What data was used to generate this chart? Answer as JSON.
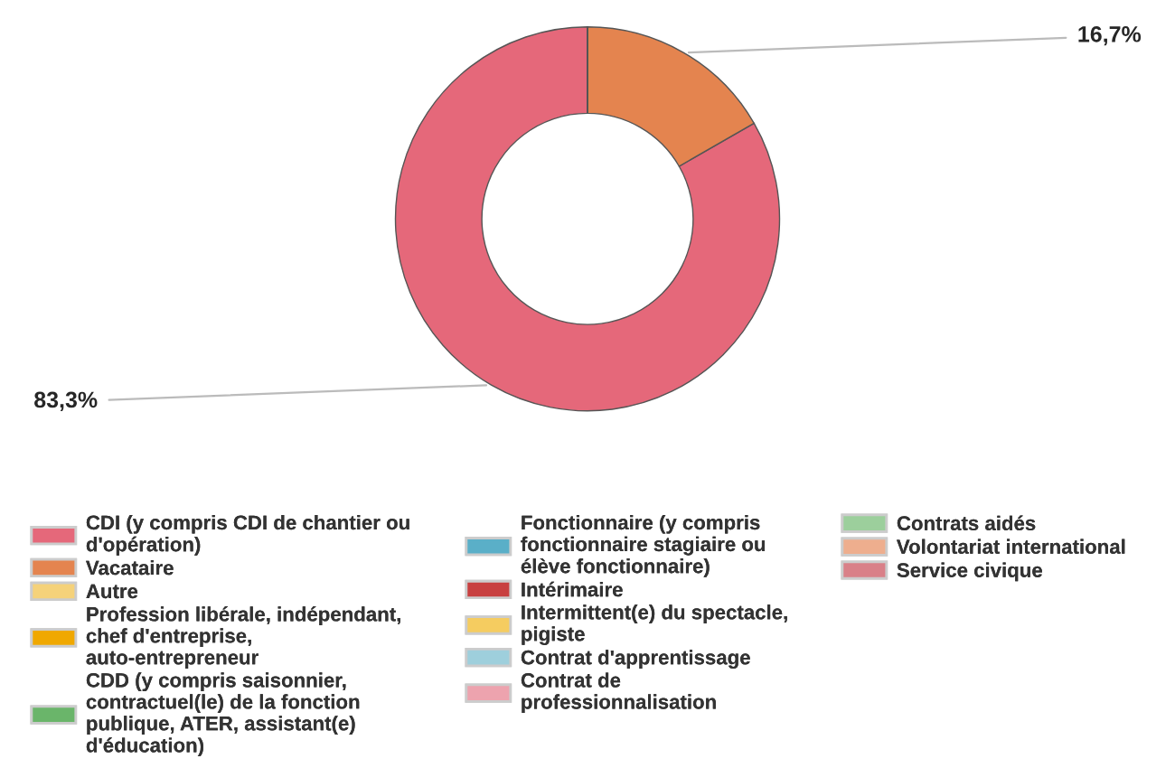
{
  "chart_data": {
    "type": "donut",
    "categories": [
      "CDI (y compris CDI de chantier ou d'opération)",
      "Vacataire",
      "Autre",
      "Profession libérale, indépendant, chef d'entreprise, auto-entrepreneur",
      "CDD (y compris saisonnier, contractuel(le) de la fonction publique, ATER, assistant(e) d'éducation)",
      "Fonctionnaire (y compris fonctionnaire stagiaire ou élève fonctionnaire)",
      "Intérimaire",
      "Intermittent(e) du spectacle, pigiste",
      "Contrat d'apprentissage",
      "Contrat de professionnalisation",
      "Contrats aidés",
      "Volontariat international",
      "Service civique"
    ],
    "values": [
      83.3,
      16.7,
      0,
      0,
      0,
      0,
      0,
      0,
      0,
      0,
      0,
      0,
      0
    ],
    "value_labels": [
      "83,3%",
      "16,7%",
      null,
      null,
      null,
      null,
      null,
      null,
      null,
      null,
      null,
      null,
      null
    ],
    "colors": [
      "#e5687a",
      "#e4844f",
      "#f5d27a",
      "#f0a800",
      "#6ab56a",
      "#5aafc8",
      "#c84040",
      "#f5cc60",
      "#9ecfdc",
      "#eda3ae",
      "#9ccf9c",
      "#eeae8e",
      "#d98088"
    ],
    "legend": "bottom"
  }
}
